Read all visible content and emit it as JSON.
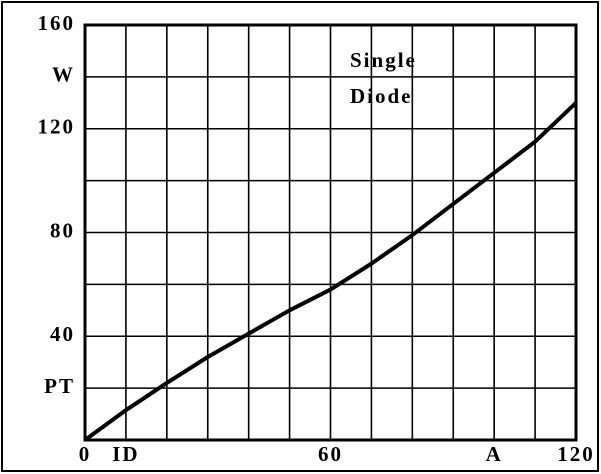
{
  "chart_data": {
    "type": "line",
    "annotation_lines": [
      "Single",
      "Diode"
    ],
    "x": [
      0,
      10,
      20,
      30,
      40,
      50,
      60,
      70,
      80,
      90,
      100,
      110,
      120
    ],
    "series": [
      {
        "color": "#000000",
        "values": [
          0,
          11.5,
          22,
          32,
          41,
          50,
          58,
          68,
          79,
          91,
          103,
          115,
          130
        ]
      }
    ],
    "xlim": [
      0,
      120
    ],
    "ylim": [
      0,
      160
    ],
    "xticks": [
      0,
      {
        "value": 10,
        "label": "ID"
      },
      60,
      {
        "value": 100,
        "label": "A"
      },
      120
    ],
    "yticks": [
      {
        "value": 20,
        "label": "PT"
      },
      40,
      80,
      120,
      {
        "value": 140,
        "label": "W"
      },
      160
    ],
    "xgrid": [
      10,
      20,
      30,
      40,
      50,
      60,
      70,
      80,
      90,
      100,
      110
    ],
    "ygrid": [
      20,
      40,
      60,
      80,
      100,
      120,
      140
    ],
    "grid": true
  }
}
